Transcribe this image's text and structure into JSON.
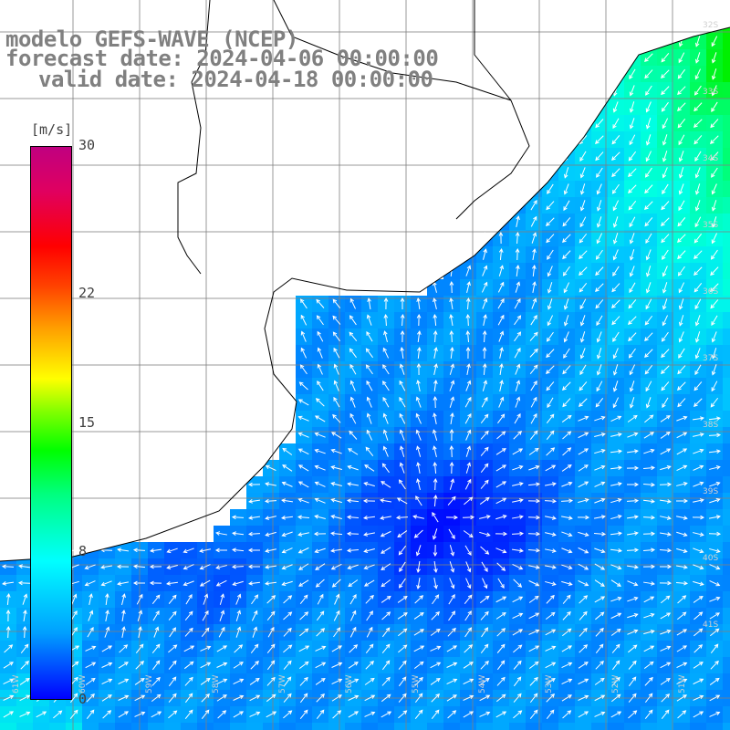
{
  "map": {
    "title_model": "modelo GEFS-WAVE (NCEP)",
    "forecast_date_text": "forecast date: 2024-04-06 00:00:00",
    "valid_date_text": "valid date: 2024-04-18 00:00:00",
    "variable": "wind speed and direction",
    "units": "[m/s]",
    "colorbar": {
      "min": 0,
      "max": 30,
      "tick_labels": [
        "30",
        "22",
        "15",
        "8",
        "0"
      ],
      "tick_values": [
        30,
        22,
        15,
        8,
        0
      ],
      "colors": [
        "#0000ff",
        "#00a0ff",
        "#00ffff",
        "#00ff80",
        "#00ff00",
        "#ffff00",
        "#ff8000",
        "#ff0000",
        "#c00080"
      ]
    },
    "lat_labels": [
      "32S",
      "33S",
      "34S",
      "35S",
      "36S",
      "37S",
      "38S",
      "39S",
      "40S",
      "41S"
    ],
    "lon_labels": [
      "61W",
      "60W",
      "59W",
      "58W",
      "57W",
      "56W",
      "55W",
      "54W",
      "53W",
      "52W",
      "51W"
    ],
    "arrow_color": "#ffffff",
    "land_color": "#ffffff",
    "coastline_color": "#000000",
    "grid_color": "#808080"
  }
}
